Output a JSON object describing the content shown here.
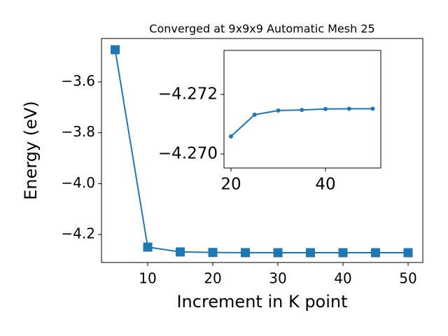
{
  "chart_data": [
    {
      "type": "line",
      "title": "Converged at 9x9x9 Automatic Mesh 25",
      "x_label": "Increment in K point",
      "y_label": "Energy (eV)",
      "x": [
        5,
        10,
        15,
        20,
        25,
        30,
        35,
        40,
        45,
        50
      ],
      "values": [
        -3.4734,
        -4.2495,
        -4.2685,
        -4.2706,
        -4.2713,
        -4.2715,
        -4.2715,
        -4.2715,
        -4.2715,
        -4.2715
      ],
      "color": "#1f77b4",
      "marker": "square",
      "xlim": [
        2.9,
        52.26
      ],
      "ylim": [
        -4.31,
        -3.4293
      ],
      "xticks": [
        10,
        20,
        30,
        40,
        50
      ],
      "yticks": [
        {
          "value": -4.2,
          "label": "−4.2"
        },
        {
          "value": -4.0,
          "label": "−4.0"
        },
        {
          "value": -3.8,
          "label": "−3.8"
        },
        {
          "value": -3.6,
          "label": "−3.6"
        }
      ]
    },
    {
      "type": "line",
      "x": [
        20,
        25,
        30,
        35,
        40,
        45,
        50
      ],
      "values": [
        -4.27059,
        -4.27132,
        -4.27146,
        -4.27148,
        -4.27151,
        -4.27152,
        -4.27152
      ],
      "color": "#1f77b4",
      "marker": "circle",
      "xlim": [
        18.52,
        51.7
      ],
      "ylim": [
        -4.26953,
        -4.27348
      ],
      "xticks": [
        20,
        40
      ],
      "yticks": [
        {
          "value": -4.27,
          "label": "−4.270"
        },
        {
          "value": -4.272,
          "label": "−4.272"
        }
      ]
    }
  ]
}
